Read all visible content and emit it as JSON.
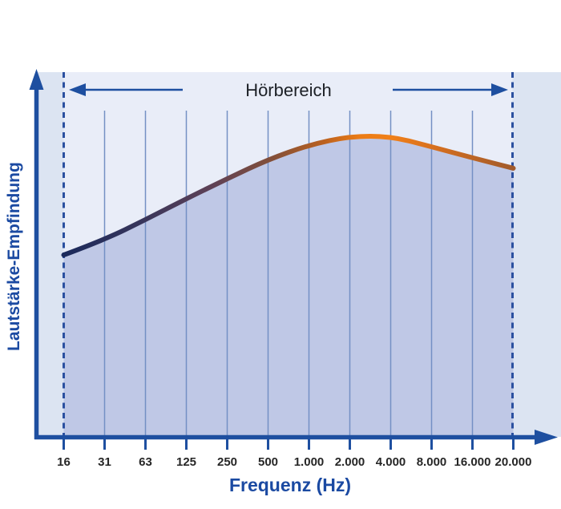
{
  "title_band": {
    "label": "Hörbereich",
    "left_arrow": "arrow-left-to-16Hz-boundary",
    "right_arrow": "arrow-right-to-20000Hz-boundary"
  },
  "axes": {
    "x_label": "Frequenz (Hz)",
    "y_label": "Lautstärke-Empfindung"
  },
  "chart_data": {
    "type": "area",
    "title": "Hörbereich",
    "xlabel": "Frequenz (Hz)",
    "ylabel": "Lautstärke-Empfindung",
    "x_scale": "logarithmic (octave bands)",
    "categories": [
      "16",
      "31",
      "63",
      "125",
      "250",
      "500",
      "1.000",
      "2.000",
      "4.000",
      "8.000",
      "16.000",
      "20.000"
    ],
    "frequencies_hz": [
      16,
      31,
      63,
      125,
      250,
      500,
      1000,
      2000,
      4000,
      8000,
      16000,
      20000
    ],
    "relative_loudness_sensitivity": [
      0.603,
      0.654,
      0.721,
      0.791,
      0.858,
      0.922,
      0.971,
      1.0,
      1.0,
      0.965,
      0.928,
      0.893
    ],
    "peak_frequency_hz": 3000,
    "hearing_range_markers_hz": [
      16,
      20000
    ],
    "ylim": [
      0,
      1.05
    ],
    "grid": "vertical grid lines at each octave tick; dashed boundary lines at 16 Hz and 20.000 Hz",
    "legend": "none",
    "annotations": [
      "Hörbereich range with outward arrows spanning 16 Hz to 20.000 Hz"
    ]
  },
  "colors": {
    "axis_blue": "#1e4fa0",
    "label_blue": "#1b4aa2",
    "panel_background": "#dce4f2",
    "inner_band_background": "#e9edf8",
    "area_fill": "#bfc8e6",
    "grid_line": "#7490c4",
    "dashed_boundary": "#2b50a0",
    "curve_left_navy": "#1b2a5c",
    "curve_peak_orange": "#f08019",
    "curve_right_brown": "#a15a2b",
    "title_text": "#1c2026",
    "tick_text": "#262626"
  }
}
